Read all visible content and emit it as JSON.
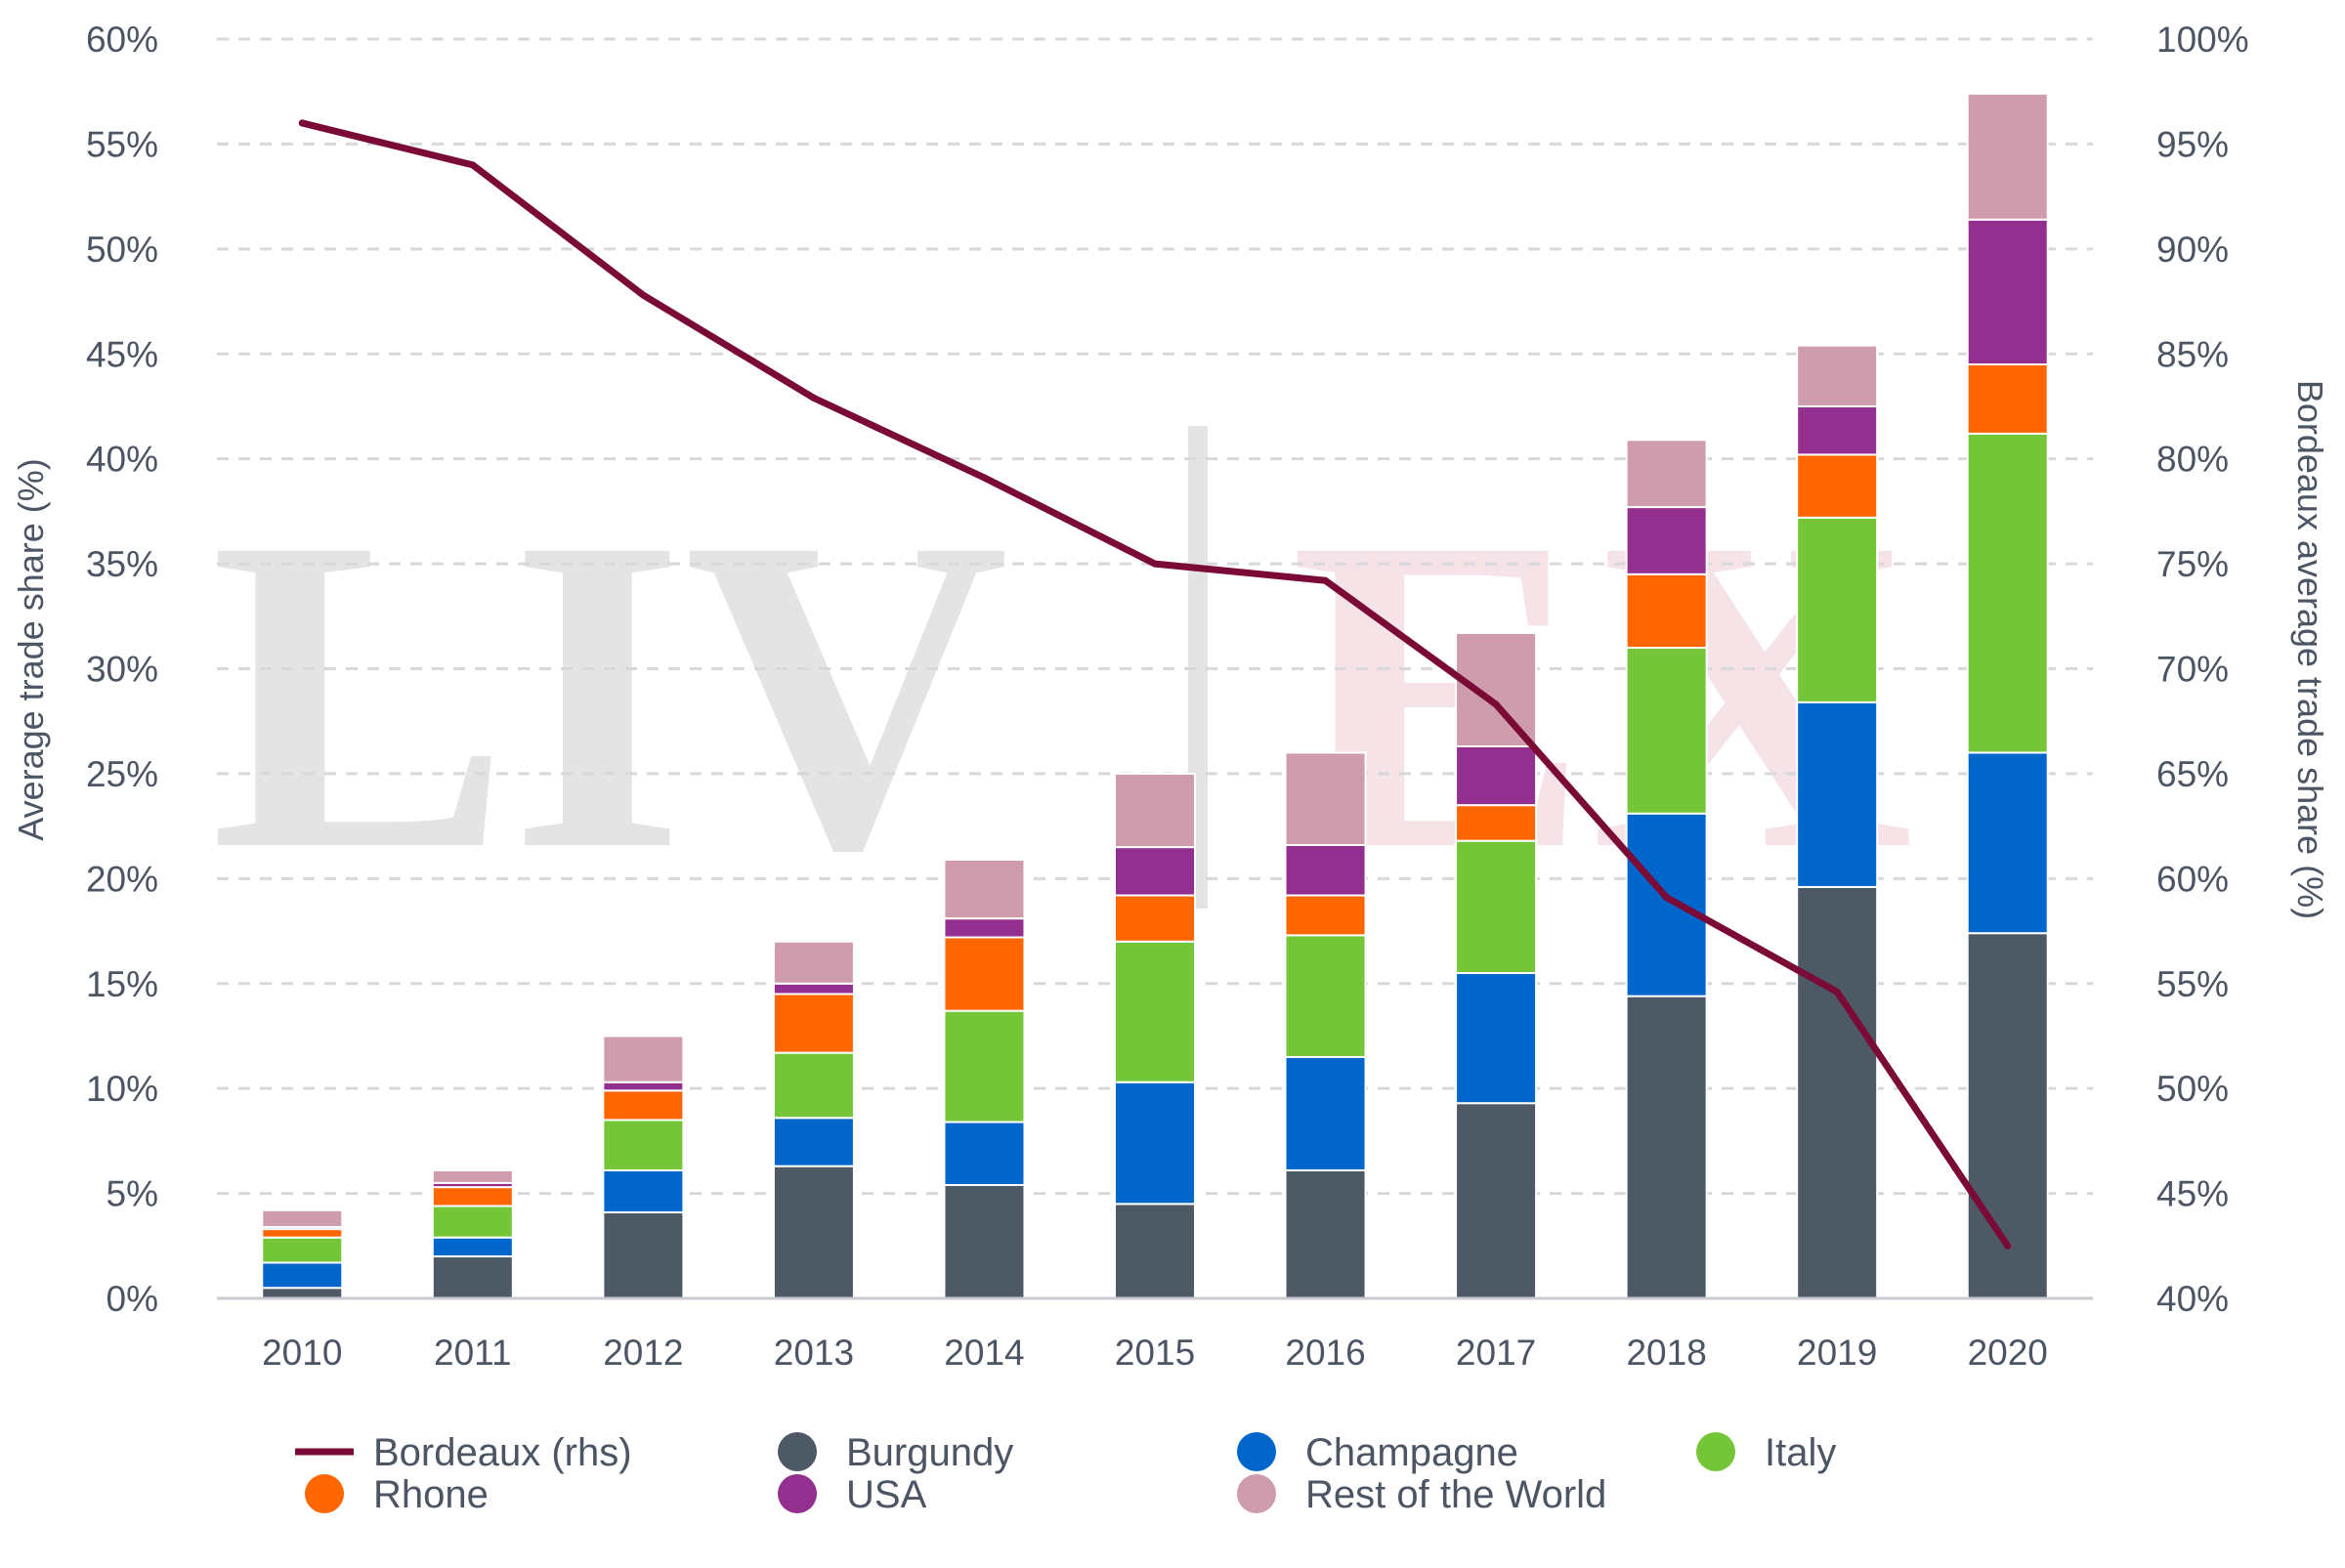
{
  "chart_data": {
    "type": "bar",
    "stacked": true,
    "categories": [
      "2010",
      "2011",
      "2012",
      "2013",
      "2014",
      "2015",
      "2016",
      "2017",
      "2018",
      "2019",
      "2020"
    ],
    "ylabel": "Average trade share (%)",
    "ylabel_right": "Bordeaux average trade share (%)",
    "ylim": [
      0,
      60
    ],
    "ylim_right": [
      40,
      100
    ],
    "y_ticks": [
      "0%",
      "5%",
      "10%",
      "15%",
      "20%",
      "25%",
      "30%",
      "35%",
      "40%",
      "45%",
      "50%",
      "55%",
      "60%"
    ],
    "y_ticks_right": [
      "40%",
      "45%",
      "50%",
      "55%",
      "60%",
      "65%",
      "70%",
      "75%",
      "80%",
      "85%",
      "90%",
      "95%",
      "100%"
    ],
    "grid": "horizontal dashed",
    "legend_position": "bottom",
    "series": [
      {
        "name": "Burgundy",
        "color": "#4d5a66",
        "values": [
          0.5,
          2.0,
          4.1,
          6.3,
          5.4,
          4.5,
          6.1,
          9.3,
          14.4,
          19.6,
          17.4
        ]
      },
      {
        "name": "Champagne",
        "color": "#0066cc",
        "values": [
          1.2,
          0.9,
          2.0,
          2.3,
          3.0,
          5.8,
          5.4,
          6.2,
          8.7,
          8.8,
          8.6
        ]
      },
      {
        "name": "Italy",
        "color": "#74c638",
        "values": [
          1.2,
          1.5,
          2.4,
          3.1,
          5.3,
          6.7,
          5.8,
          6.3,
          7.9,
          8.8,
          15.2
        ]
      },
      {
        "name": "Rhone",
        "color": "#ff6600",
        "values": [
          0.4,
          0.9,
          1.4,
          2.8,
          3.5,
          2.2,
          1.9,
          1.7,
          3.5,
          3.0,
          3.3
        ]
      },
      {
        "name": "USA",
        "color": "#93308f",
        "values": [
          0.1,
          0.2,
          0.4,
          0.5,
          0.9,
          2.3,
          2.4,
          2.8,
          3.2,
          2.3,
          6.9
        ]
      },
      {
        "name": "Rest of the World",
        "color": "#cf9cad",
        "values": [
          0.8,
          0.6,
          2.2,
          2.0,
          2.8,
          3.5,
          4.4,
          5.4,
          3.2,
          2.9,
          6.0
        ]
      }
    ],
    "line_series": {
      "name": "Bordeaux (rhs)",
      "axis": "right",
      "color": "#7a0a36",
      "values": [
        96.0,
        94.0,
        87.8,
        82.9,
        79.1,
        75.0,
        74.2,
        68.3,
        59.1,
        54.6,
        42.5
      ]
    },
    "legend": [
      {
        "label": "Bordeaux (rhs)",
        "color": "#7a0a36",
        "shape": "line"
      },
      {
        "label": "Burgundy",
        "color": "#4d5a66",
        "shape": "circle"
      },
      {
        "label": "Champagne",
        "color": "#0066cc",
        "shape": "circle"
      },
      {
        "label": "Italy",
        "color": "#74c638",
        "shape": "circle"
      },
      {
        "label": "Rhone",
        "color": "#ff6600",
        "shape": "circle"
      },
      {
        "label": "USA",
        "color": "#93308f",
        "shape": "circle"
      },
      {
        "label": "Rest of the World",
        "color": "#cf9cad",
        "shape": "circle"
      }
    ]
  },
  "watermark": {
    "left_text": "LIV",
    "right_text": "EX",
    "name": "liv-ex-logo"
  }
}
